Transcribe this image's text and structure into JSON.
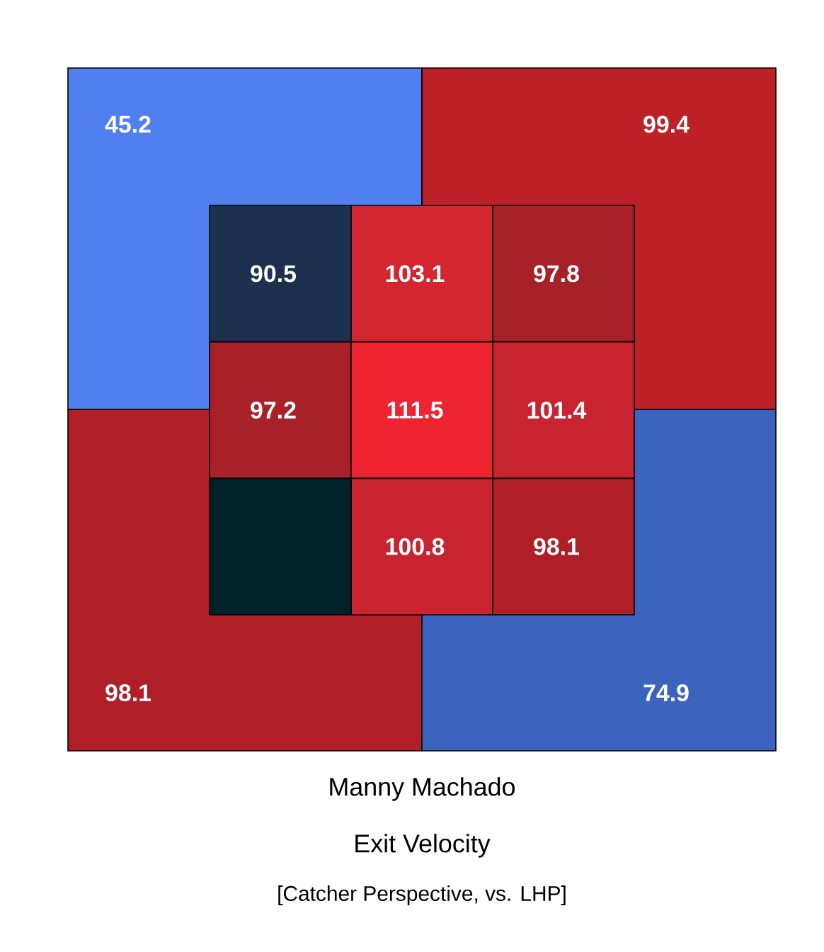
{
  "chart_data": [
    {
      "type": "heatmap",
      "title": "Manny Machado",
      "subtitle": "Exit Velocity",
      "annotations": [
        "[Catcher Perspective, vs. LHP]"
      ],
      "categories": [
        null,
        null
      ],
      "y_categories": [
        null,
        null
      ],
      "cells": [
        [
          45.2,
          99.4
        ],
        [
          98.1,
          74.9
        ]
      ],
      "colors": [
        [
          "#5080f0",
          "#be2028"
        ],
        [
          "#b01e28",
          "#3c64be"
        ]
      ],
      "data_labels": true
    },
    {
      "type": "heatmap",
      "categories": [
        null,
        null,
        null
      ],
      "y_categories": [
        null,
        null,
        null
      ],
      "cells": [
        [
          90.5,
          103.1,
          97.8
        ],
        [
          97.2,
          111.5,
          101.4
        ],
        [
          null,
          100.8,
          98.1
        ]
      ],
      "colors": [
        [
          "#1e3050",
          "#d42630",
          "#a82028"
        ],
        [
          "#a82028",
          "#ee2430",
          "#c82430"
        ],
        [
          "#00202a",
          "#c82430",
          "#b01e28"
        ]
      ],
      "data_labels": true
    }
  ]
}
